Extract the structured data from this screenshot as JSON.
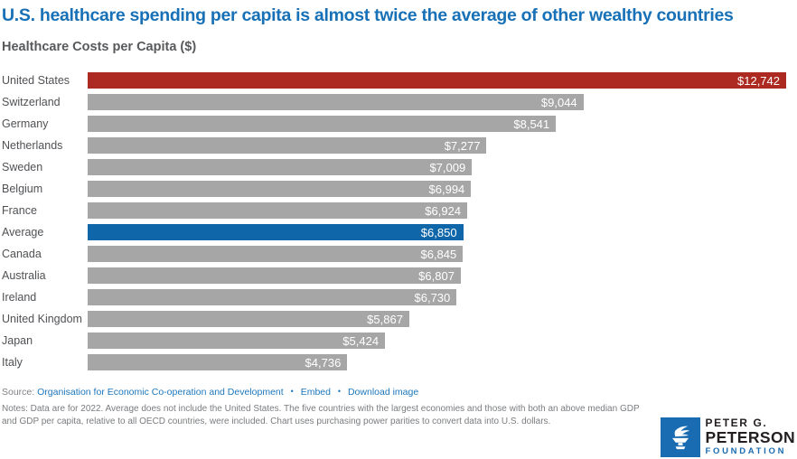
{
  "title": "U.S. healthcare spending per capita is almost twice the average of other wealthy countries",
  "subtitle": "Healthcare Costs per Capita ($)",
  "chart_data": {
    "type": "bar",
    "orientation": "horizontal",
    "title": "Healthcare Costs per Capita ($)",
    "categories": [
      "United States",
      "Switzerland",
      "Germany",
      "Netherlands",
      "Sweden",
      "Belgium",
      "France",
      "Average",
      "Canada",
      "Australia",
      "Ireland",
      "United Kingdom",
      "Japan",
      "Italy"
    ],
    "values": [
      12742,
      9044,
      8541,
      7277,
      7009,
      6994,
      6924,
      6850,
      6845,
      6807,
      6730,
      5867,
      5424,
      4736
    ],
    "value_labels": [
      "$12,742",
      "$9,044",
      "$8,541",
      "$7,277",
      "$7,009",
      "$6,994",
      "$6,924",
      "$6,850",
      "$6,845",
      "$6,807",
      "$6,730",
      "$5,867",
      "$5,424",
      "$4,736"
    ],
    "xlim": [
      0,
      12742
    ],
    "grid": false,
    "legend": "none",
    "bar_colors": {
      "United States": "#ac2a22",
      "Average": "#0f67aa",
      "default": "#a6a6a6"
    }
  },
  "footer": {
    "source_label": "Source:",
    "source_link": "Organisation for Economic Co-operation and Development",
    "separator": "•",
    "embed_label": "Embed",
    "download_label": "Download image",
    "notes": "Notes: Data are for 2022. Average does not include the United States. The five countries with the largest economies and those with both an above median GDP and GDP per capita, relative to all OECD countries, were included. Chart uses purchasing power parities to convert data into U.S. dollars."
  },
  "logo": {
    "line1": "PETER G.",
    "line2": "PETERSON",
    "line3": "FOUNDATION"
  },
  "colors": {
    "title_blue": "#1871b6",
    "link_blue": "#1d77bb",
    "bar_red": "#ac2a22",
    "bar_gray": "#a6a6a6",
    "bar_blue": "#0f67aa",
    "value_text": "#ffffff",
    "label_gray": "#4f5154",
    "notes_gray": "#7a7c7f",
    "logo_blue": "#1a6cb2",
    "logo_dark": "#231f20"
  }
}
